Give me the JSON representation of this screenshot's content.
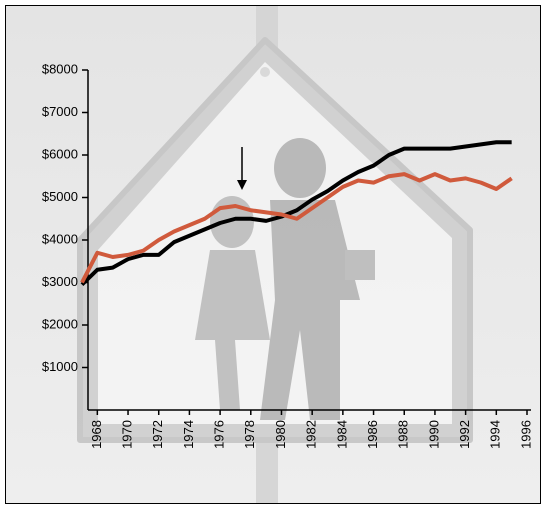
{
  "chart_data": {
    "type": "line",
    "x": [
      1967,
      1968,
      1969,
      1970,
      1971,
      1972,
      1973,
      1974,
      1975,
      1976,
      1977,
      1978,
      1979,
      1980,
      1981,
      1982,
      1983,
      1984,
      1985,
      1986,
      1987,
      1988,
      1989,
      1990,
      1991,
      1992,
      1993,
      1994,
      1995
    ],
    "series": [
      {
        "color": "#000000",
        "values": [
          2950,
          3300,
          3350,
          3550,
          3650,
          3650,
          3950,
          4100,
          4250,
          4400,
          4500,
          4500,
          4450,
          4550,
          4700,
          4950,
          5150,
          5400,
          5600,
          5750,
          6000,
          6150,
          6150,
          6150,
          6150,
          6200,
          6250,
          6300,
          6300
        ]
      },
      {
        "color": "#d05a3c",
        "values": [
          3000,
          3700,
          3600,
          3650,
          3750,
          4000,
          4200,
          4350,
          4500,
          4750,
          4800,
          4700,
          4650,
          4600,
          4500,
          4750,
          5000,
          5250,
          5400,
          5350,
          5500,
          5550,
          5400,
          5550,
          5400,
          5450,
          5350,
          5200,
          5450
        ]
      }
    ],
    "xlim": [
      1967,
      1996
    ],
    "xticks": [
      1968,
      1970,
      1972,
      1974,
      1976,
      1978,
      1980,
      1982,
      1984,
      1986,
      1988,
      1990,
      1992,
      1994,
      1996
    ],
    "ylim": [
      0,
      8000
    ],
    "yticks": [
      {
        "value": 1000,
        "label": "$1000"
      },
      {
        "value": 2000,
        "label": "$2000"
      },
      {
        "value": 3000,
        "label": "$3000"
      },
      {
        "value": 4000,
        "label": "$4000"
      },
      {
        "value": 5000,
        "label": "$5000"
      },
      {
        "value": 6000,
        "label": "$6000"
      },
      {
        "value": 7000,
        "label": "$7000"
      },
      {
        "value": 8000,
        "label": "$8000"
      }
    ],
    "grid": false
  }
}
